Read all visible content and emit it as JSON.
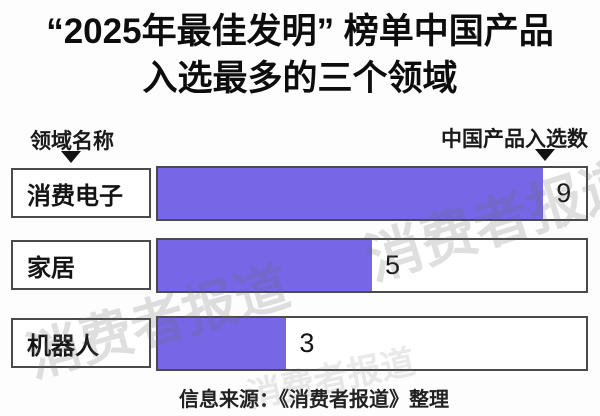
{
  "title": {
    "line1": "“2025年最佳发明” 榜单中国产品",
    "line2": "入选最多的三个领域"
  },
  "axis": {
    "left_label": "领域名称",
    "right_label": "中国产品入选数"
  },
  "chart_data": {
    "type": "bar",
    "orientation": "horizontal",
    "title": "“2025年最佳发明”榜单中国产品入选最多的三个领域",
    "categories": [
      "消费电子",
      "家居",
      "机器人"
    ],
    "values": [
      9,
      5,
      3
    ],
    "xlim": [
      0,
      10
    ],
    "xlabel": "中国产品入选数",
    "ylabel": "领域名称",
    "grid": false,
    "legend": false,
    "bar_color": "#7766e6"
  },
  "source": "信息来源：《消费者报道》整理",
  "watermark": "消费者报道",
  "colors": {
    "bar": "#7766e6",
    "border": "#4a4a4a",
    "text": "#111111",
    "background": "#fdfdfd",
    "watermark": "rgba(110,110,110,0.22)"
  }
}
